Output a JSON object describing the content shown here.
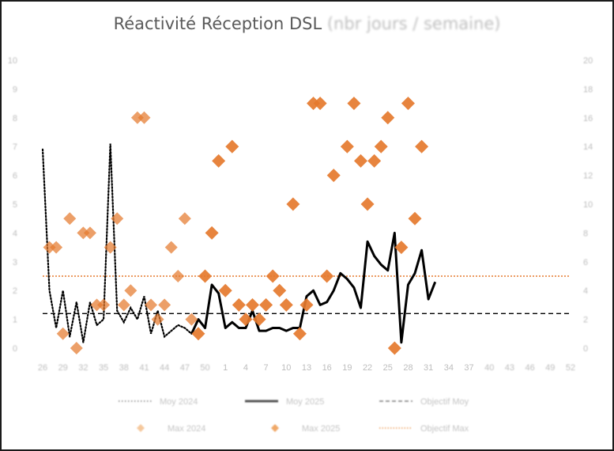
{
  "chart_data": {
    "type": "combo",
    "title": "Réactivité Réception DSL",
    "title_unit": "(nbr jours / semaine)",
    "x_ticks": [
      "26",
      "29",
      "32",
      "35",
      "38",
      "41",
      "44",
      "47",
      "50",
      "1",
      "4",
      "7",
      "10",
      "13",
      "16",
      "19",
      "22",
      "25",
      "28",
      "31",
      "34",
      "37",
      "40",
      "43",
      "46",
      "49",
      "52"
    ],
    "y_left": {
      "min": 0,
      "max": 10,
      "ticks": [
        "0",
        "1",
        "2",
        "3",
        "4",
        "5",
        "6",
        "7",
        "8",
        "9",
        "10"
      ]
    },
    "y_right": {
      "min": 0,
      "max": 20,
      "ticks": [
        "0",
        "2",
        "4",
        "6",
        "8",
        "10",
        "12",
        "14",
        "16",
        "18",
        "20"
      ]
    },
    "colors": {
      "max_2024": "#f0b07a",
      "max_2025": "#e57a2e",
      "moy_2025": "#000000",
      "moy_2024": "#000000",
      "objectif_moy": "#000000",
      "objectif_max": "#e57a2e"
    },
    "objectif_moy": 1.2,
    "objectif_max": 2.5,
    "series": [
      {
        "name": "Moy 2024",
        "style": "dotted-line",
        "axis": "left",
        "points": [
          [
            26,
            6.9
          ],
          [
            27,
            2.0
          ],
          [
            28,
            0.7
          ],
          [
            29,
            2.0
          ],
          [
            30,
            0.4
          ],
          [
            31,
            1.6
          ],
          [
            32,
            0.2
          ],
          [
            33,
            1.6
          ],
          [
            34,
            0.8
          ],
          [
            35,
            1.0
          ],
          [
            36,
            7.1
          ],
          [
            37,
            1.3
          ],
          [
            38,
            0.9
          ],
          [
            39,
            1.4
          ],
          [
            40,
            1.0
          ],
          [
            41,
            1.8
          ],
          [
            42,
            0.5
          ],
          [
            43,
            1.3
          ],
          [
            44,
            0.4
          ],
          [
            45,
            0.6
          ],
          [
            46,
            0.8
          ],
          [
            47,
            0.7
          ],
          [
            48,
            0.5
          ]
        ]
      },
      {
        "name": "Moy 2025",
        "style": "solid-line",
        "axis": "left",
        "points": [
          [
            48,
            0.5
          ],
          [
            49,
            1.0
          ],
          [
            50,
            0.7
          ],
          [
            51,
            2.2
          ],
          [
            52,
            1.9
          ],
          [
            53,
            0.7
          ],
          [
            54,
            0.9
          ],
          [
            55,
            0.7
          ],
          [
            56,
            0.7
          ],
          [
            57,
            1.3
          ],
          [
            58,
            0.6
          ],
          [
            59,
            0.6
          ],
          [
            60,
            0.7
          ],
          [
            61,
            0.7
          ],
          [
            62,
            0.6
          ],
          [
            63,
            0.7
          ],
          [
            64,
            0.7
          ],
          [
            65,
            1.8
          ],
          [
            66,
            2.0
          ],
          [
            67,
            1.5
          ],
          [
            68,
            1.6
          ],
          [
            69,
            2.0
          ],
          [
            70,
            2.6
          ],
          [
            71,
            2.4
          ],
          [
            72,
            2.1
          ],
          [
            73,
            1.4
          ],
          [
            74,
            3.7
          ],
          [
            75,
            3.2
          ],
          [
            76,
            2.9
          ],
          [
            77,
            2.7
          ],
          [
            78,
            4.0
          ],
          [
            79,
            0.2
          ],
          [
            80,
            2.2
          ],
          [
            81,
            2.6
          ],
          [
            82,
            3.4
          ],
          [
            83,
            1.7
          ],
          [
            84,
            2.3
          ]
        ]
      },
      {
        "name": "Max 2024",
        "style": "diamond-markers",
        "axis": "left",
        "points": [
          [
            27,
            3.5
          ],
          [
            28,
            3.5
          ],
          [
            29,
            0.5
          ],
          [
            30,
            4.5
          ],
          [
            31,
            0.0
          ],
          [
            32,
            4.0
          ],
          [
            33,
            4.0
          ],
          [
            34,
            1.5
          ],
          [
            35,
            1.5
          ],
          [
            36,
            3.5
          ],
          [
            37,
            4.5
          ],
          [
            38,
            1.5
          ],
          [
            39,
            2.0
          ],
          [
            40,
            8.0
          ],
          [
            41,
            8.0
          ],
          [
            42,
            1.5
          ],
          [
            43,
            1.0
          ],
          [
            44,
            1.5
          ],
          [
            45,
            3.5
          ],
          [
            46,
            2.5
          ],
          [
            47,
            4.5
          ],
          [
            48,
            1.0
          ]
        ]
      },
      {
        "name": "Max 2025",
        "style": "diamond-markers",
        "axis": "left",
        "points": [
          [
            49,
            0.5
          ],
          [
            50,
            2.5
          ],
          [
            51,
            4.0
          ],
          [
            52,
            6.5
          ],
          [
            53,
            2.0
          ],
          [
            54,
            7.0
          ],
          [
            55,
            1.5
          ],
          [
            56,
            1.0
          ],
          [
            57,
            1.5
          ],
          [
            58,
            1.0
          ],
          [
            59,
            1.5
          ],
          [
            60,
            2.5
          ],
          [
            61,
            2.0
          ],
          [
            62,
            1.5
          ],
          [
            63,
            5.0
          ],
          [
            64,
            0.5
          ],
          [
            65,
            1.5
          ],
          [
            66,
            8.5
          ],
          [
            67,
            8.5
          ],
          [
            68,
            2.5
          ],
          [
            69,
            6.0
          ],
          [
            71,
            7.0
          ],
          [
            72,
            8.5
          ],
          [
            73,
            6.5
          ],
          [
            74,
            5.0
          ],
          [
            75,
            6.5
          ],
          [
            76,
            7.0
          ],
          [
            77,
            8.0
          ],
          [
            78,
            0.0
          ],
          [
            79,
            3.5
          ],
          [
            80,
            8.5
          ],
          [
            81,
            4.5
          ],
          [
            82,
            7.0
          ]
        ]
      },
      {
        "name": "Objectif Moy",
        "style": "dashed-line",
        "axis": "left"
      },
      {
        "name": "Objectif Max",
        "style": "dotted-line",
        "axis": "left"
      }
    ],
    "legend_position": "bottom",
    "legend": [
      "Moy 2024",
      "Moy 2025",
      "Objectif Moy",
      "Max 2024",
      "Max 2025",
      "Objectif Max"
    ]
  }
}
